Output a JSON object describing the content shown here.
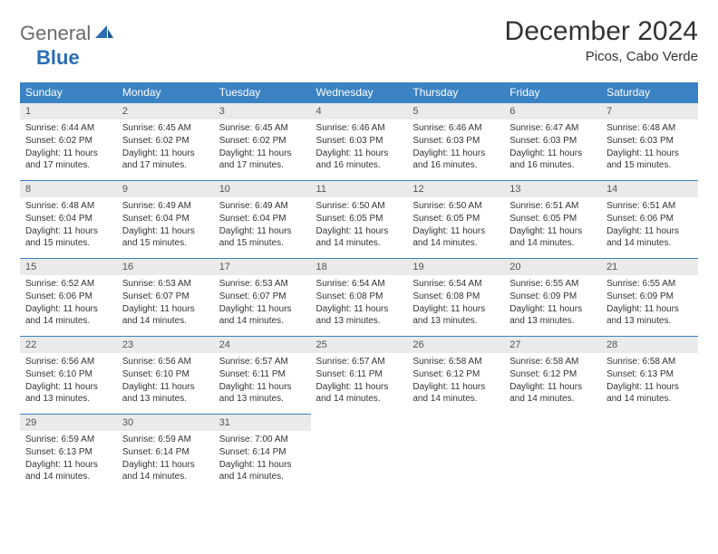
{
  "logo": {
    "word1": "General",
    "word2": "Blue"
  },
  "header": {
    "title": "December 2024",
    "location": "Picos, Cabo Verde"
  },
  "colors": {
    "header_bg": "#3b82c4",
    "header_text": "#ffffff",
    "daynum_bg": "#eaeaea",
    "rule": "#3b82c4"
  },
  "weekdays": [
    "Sunday",
    "Monday",
    "Tuesday",
    "Wednesday",
    "Thursday",
    "Friday",
    "Saturday"
  ],
  "days": [
    {
      "n": "1",
      "sr": "6:44 AM",
      "ss": "6:02 PM",
      "dl": "11 hours and 17 minutes."
    },
    {
      "n": "2",
      "sr": "6:45 AM",
      "ss": "6:02 PM",
      "dl": "11 hours and 17 minutes."
    },
    {
      "n": "3",
      "sr": "6:45 AM",
      "ss": "6:02 PM",
      "dl": "11 hours and 17 minutes."
    },
    {
      "n": "4",
      "sr": "6:46 AM",
      "ss": "6:03 PM",
      "dl": "11 hours and 16 minutes."
    },
    {
      "n": "5",
      "sr": "6:46 AM",
      "ss": "6:03 PM",
      "dl": "11 hours and 16 minutes."
    },
    {
      "n": "6",
      "sr": "6:47 AM",
      "ss": "6:03 PM",
      "dl": "11 hours and 16 minutes."
    },
    {
      "n": "7",
      "sr": "6:48 AM",
      "ss": "6:03 PM",
      "dl": "11 hours and 15 minutes."
    },
    {
      "n": "8",
      "sr": "6:48 AM",
      "ss": "6:04 PM",
      "dl": "11 hours and 15 minutes."
    },
    {
      "n": "9",
      "sr": "6:49 AM",
      "ss": "6:04 PM",
      "dl": "11 hours and 15 minutes."
    },
    {
      "n": "10",
      "sr": "6:49 AM",
      "ss": "6:04 PM",
      "dl": "11 hours and 15 minutes."
    },
    {
      "n": "11",
      "sr": "6:50 AM",
      "ss": "6:05 PM",
      "dl": "11 hours and 14 minutes."
    },
    {
      "n": "12",
      "sr": "6:50 AM",
      "ss": "6:05 PM",
      "dl": "11 hours and 14 minutes."
    },
    {
      "n": "13",
      "sr": "6:51 AM",
      "ss": "6:05 PM",
      "dl": "11 hours and 14 minutes."
    },
    {
      "n": "14",
      "sr": "6:51 AM",
      "ss": "6:06 PM",
      "dl": "11 hours and 14 minutes."
    },
    {
      "n": "15",
      "sr": "6:52 AM",
      "ss": "6:06 PM",
      "dl": "11 hours and 14 minutes."
    },
    {
      "n": "16",
      "sr": "6:53 AM",
      "ss": "6:07 PM",
      "dl": "11 hours and 14 minutes."
    },
    {
      "n": "17",
      "sr": "6:53 AM",
      "ss": "6:07 PM",
      "dl": "11 hours and 14 minutes."
    },
    {
      "n": "18",
      "sr": "6:54 AM",
      "ss": "6:08 PM",
      "dl": "11 hours and 13 minutes."
    },
    {
      "n": "19",
      "sr": "6:54 AM",
      "ss": "6:08 PM",
      "dl": "11 hours and 13 minutes."
    },
    {
      "n": "20",
      "sr": "6:55 AM",
      "ss": "6:09 PM",
      "dl": "11 hours and 13 minutes."
    },
    {
      "n": "21",
      "sr": "6:55 AM",
      "ss": "6:09 PM",
      "dl": "11 hours and 13 minutes."
    },
    {
      "n": "22",
      "sr": "6:56 AM",
      "ss": "6:10 PM",
      "dl": "11 hours and 13 minutes."
    },
    {
      "n": "23",
      "sr": "6:56 AM",
      "ss": "6:10 PM",
      "dl": "11 hours and 13 minutes."
    },
    {
      "n": "24",
      "sr": "6:57 AM",
      "ss": "6:11 PM",
      "dl": "11 hours and 13 minutes."
    },
    {
      "n": "25",
      "sr": "6:57 AM",
      "ss": "6:11 PM",
      "dl": "11 hours and 14 minutes."
    },
    {
      "n": "26",
      "sr": "6:58 AM",
      "ss": "6:12 PM",
      "dl": "11 hours and 14 minutes."
    },
    {
      "n": "27",
      "sr": "6:58 AM",
      "ss": "6:12 PM",
      "dl": "11 hours and 14 minutes."
    },
    {
      "n": "28",
      "sr": "6:58 AM",
      "ss": "6:13 PM",
      "dl": "11 hours and 14 minutes."
    },
    {
      "n": "29",
      "sr": "6:59 AM",
      "ss": "6:13 PM",
      "dl": "11 hours and 14 minutes."
    },
    {
      "n": "30",
      "sr": "6:59 AM",
      "ss": "6:14 PM",
      "dl": "11 hours and 14 minutes."
    },
    {
      "n": "31",
      "sr": "7:00 AM",
      "ss": "6:14 PM",
      "dl": "11 hours and 14 minutes."
    }
  ],
  "labels": {
    "sunrise": "Sunrise:",
    "sunset": "Sunset:",
    "daylight": "Daylight:"
  },
  "calendar": {
    "first_weekday_index": 0,
    "total_days": 31
  }
}
